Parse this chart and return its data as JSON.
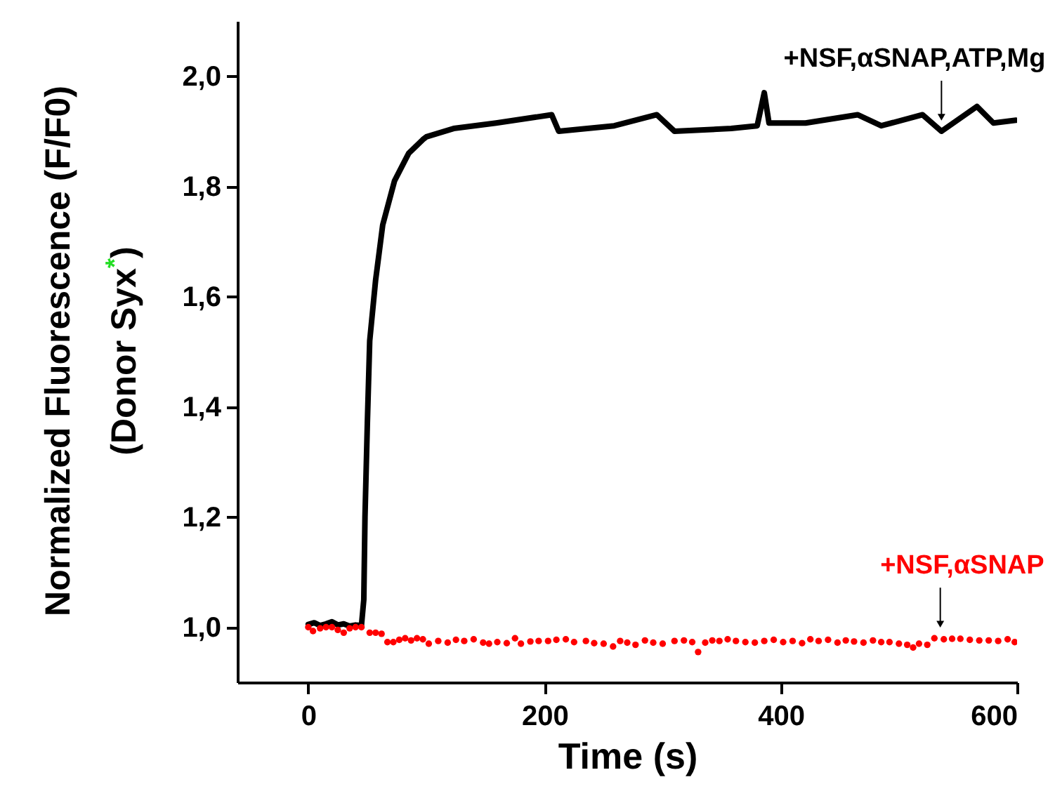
{
  "chart_data": {
    "type": "line",
    "xlabel": "Time (s)",
    "ylabel": "Normalized Fluorescence (F/F0)\n(Donor Syx$^{*}$)",
    "xlim": [
      -60,
      600
    ],
    "xticks": [
      0,
      200,
      400,
      600
    ],
    "ylim": [
      0.9,
      2.1
    ],
    "yticks": [
      {
        "value": 1.0,
        "label": "1,0"
      },
      {
        "value": 1.2,
        "label": "1,2"
      },
      {
        "value": 1.4,
        "label": "1,4"
      },
      {
        "value": 1.6,
        "label": "1,6"
      },
      {
        "value": 1.8,
        "label": "1,8"
      },
      {
        "value": 2.0,
        "label": "2,0"
      }
    ],
    "grid": false,
    "series": [
      {
        "color": "#000000",
        "x": [
          0,
          5,
          10,
          15,
          20,
          25,
          30,
          35,
          40,
          45,
          47,
          48,
          50,
          52,
          57,
          63,
          73,
          85,
          97,
          100,
          123,
          159,
          206,
          212,
          259,
          295,
          310,
          358,
          380,
          386,
          390,
          421,
          465,
          485,
          520,
          536,
          566,
          580,
          599
        ],
        "values": [
          1.005,
          1.008,
          1.003,
          1.006,
          1.01,
          1.004,
          1.006,
          1.002,
          1.004,
          1.003,
          1.05,
          1.2,
          1.37,
          1.52,
          1.63,
          1.73,
          1.81,
          1.86,
          1.885,
          1.89,
          1.905,
          1.915,
          1.93,
          1.9,
          1.91,
          1.93,
          1.9,
          1.905,
          1.91,
          1.97,
          1.915,
          1.915,
          1.93,
          1.91,
          1.93,
          1.9,
          1.945,
          1.915,
          1.92
        ]
      },
      {
        "type": "scatter",
        "color": "#ff0000",
        "x": [
          0,
          4,
          10,
          15,
          20,
          25,
          30,
          35,
          40,
          45,
          52,
          57,
          62,
          67,
          72,
          77,
          82,
          87,
          92,
          97,
          102,
          110,
          118,
          125,
          132,
          140,
          148,
          153,
          160,
          168,
          175,
          180,
          188,
          195,
          203,
          210,
          218,
          225,
          235,
          242,
          250,
          258,
          264,
          270,
          277,
          285,
          292,
          300,
          310,
          318,
          325,
          330,
          336,
          342,
          348,
          355,
          362,
          370,
          378,
          386,
          394,
          402,
          410,
          418,
          425,
          432,
          440,
          448,
          455,
          462,
          470,
          478,
          485,
          492,
          500,
          507,
          512,
          517,
          524,
          530,
          538,
          545,
          552,
          560,
          568,
          576,
          584,
          592,
          598
        ],
        "values": [
          1.0,
          0.993,
          0.998,
          1.0,
          1.0,
          0.995,
          0.99,
          0.998,
          1.0,
          1.0,
          0.99,
          0.99,
          0.988,
          0.973,
          0.973,
          0.977,
          0.98,
          0.976,
          0.98,
          0.978,
          0.97,
          0.975,
          0.972,
          0.977,
          0.975,
          0.978,
          0.972,
          0.97,
          0.973,
          0.971,
          0.98,
          0.97,
          0.974,
          0.975,
          0.975,
          0.977,
          0.978,
          0.973,
          0.975,
          0.971,
          0.97,
          0.965,
          0.975,
          0.972,
          0.968,
          0.976,
          0.972,
          0.97,
          0.975,
          0.976,
          0.973,
          0.955,
          0.972,
          0.976,
          0.975,
          0.978,
          0.975,
          0.973,
          0.972,
          0.975,
          0.977,
          0.973,
          0.975,
          0.971,
          0.978,
          0.975,
          0.977,
          0.972,
          0.976,
          0.974,
          0.972,
          0.976,
          0.973,
          0.973,
          0.97,
          0.968,
          0.963,
          0.97,
          0.968,
          0.98,
          0.978,
          0.979,
          0.979,
          0.977,
          0.976,
          0.976,
          0.975,
          0.978,
          0.973
        ]
      }
    ],
    "annotations": [
      {
        "text": "+NSF,αSNAP,ATP,Mg",
        "x": 536,
        "y": 1.9
      },
      {
        "text": "+NSF,αSNAP",
        "x": 535,
        "y": 0.98
      }
    ]
  }
}
